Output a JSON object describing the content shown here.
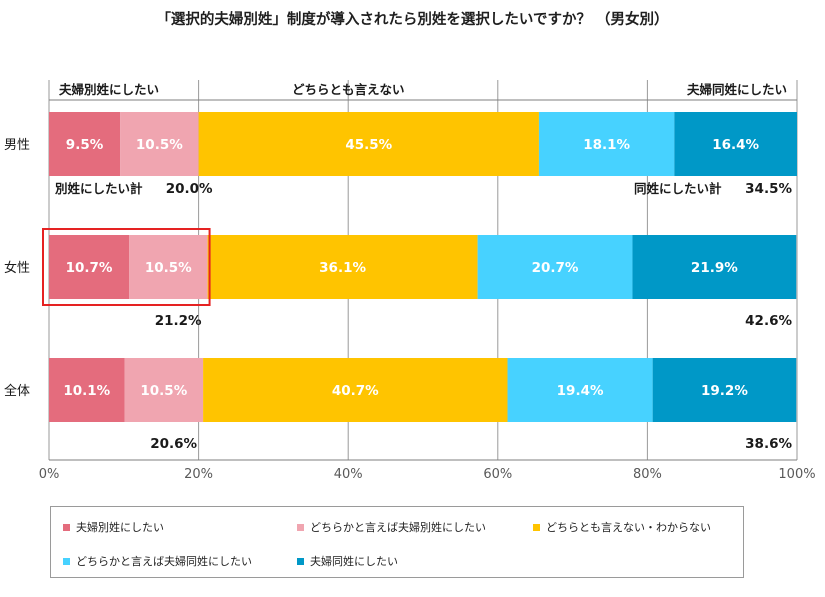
{
  "title": "「選択的夫婦別姓」制度が導入されたら別姓を選択したいですか？ （男女別）",
  "colors": {
    "want_separate": "#e46c7d",
    "rather_separate": "#f0a5b0",
    "neutral": "#ffc400",
    "rather_same": "#47d2ff",
    "want_same": "#0098c7",
    "grid": "#9a9a9a",
    "highlight": "#e52222"
  },
  "chart_data": {
    "type": "bar",
    "orientation": "horizontal",
    "stacked": true,
    "title": "「選択的夫婦別姓」制度が導入されたら別姓を選択したいですか？ （男女別）",
    "xlim": [
      0,
      100
    ],
    "xticks": [
      "0%",
      "20%",
      "40%",
      "60%",
      "80%",
      "100%"
    ],
    "categories": [
      "男性",
      "女性",
      "全体"
    ],
    "series": [
      {
        "name": "夫婦別姓にしたい",
        "values": [
          9.5,
          10.7,
          10.1
        ],
        "labels": [
          "9.5%",
          "10.7%",
          "10.1%"
        ]
      },
      {
        "name": "どちらかと言えば夫婦別姓にしたい",
        "values": [
          10.5,
          10.5,
          10.5
        ],
        "labels": [
          "10.5%",
          "10.5%",
          "10.5%"
        ]
      },
      {
        "name": "どちらとも言えない・わからない",
        "values": [
          45.5,
          36.1,
          40.7
        ],
        "labels": [
          "45.5%",
          "36.1%",
          "40.7%"
        ]
      },
      {
        "name": "どちらかと言えば夫婦同姓にしたい",
        "values": [
          18.1,
          20.7,
          19.4
        ],
        "labels": [
          "18.1%",
          "20.7%",
          "19.4%"
        ]
      },
      {
        "name": "夫婦同姓にしたい",
        "values": [
          16.4,
          21.9,
          19.2
        ],
        "labels": [
          "16.4%",
          "21.9%",
          "19.2%"
        ]
      }
    ],
    "separate_totals": [
      "20.0%",
      "21.2%",
      "20.6%"
    ],
    "same_totals": [
      "34.5%",
      "42.6%",
      "38.6%"
    ],
    "separate_total_label": "別姓にしたい計",
    "same_total_label": "同姓にしたい計",
    "header_labels": {
      "separate": "夫婦別姓にしたい",
      "neutral": "どちらとも言えない",
      "same": "夫婦同姓にしたい"
    },
    "highlighted_category": "女性"
  },
  "legend": [
    {
      "label": "夫婦別姓にしたい",
      "color": "#e46c7d"
    },
    {
      "label": "どちらかと言えば夫婦別姓にしたい",
      "color": "#f0a5b0"
    },
    {
      "label": "どちらとも言えない・わからない",
      "color": "#ffc400"
    },
    {
      "label": "どちらかと言えば夫婦同姓にしたい",
      "color": "#47d2ff"
    },
    {
      "label": "夫婦同姓にしたい",
      "color": "#0098c7"
    }
  ]
}
